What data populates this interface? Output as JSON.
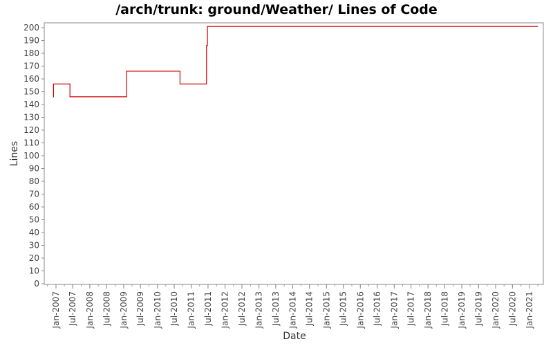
{
  "chart_data": {
    "type": "line",
    "title": "/arch/trunk: ground/Weather/ Lines of Code",
    "xlabel": "Date",
    "ylabel": "Lines",
    "ylim": [
      0,
      200
    ],
    "y_ticks": [
      0,
      10,
      20,
      30,
      40,
      50,
      60,
      70,
      80,
      90,
      100,
      110,
      120,
      130,
      140,
      150,
      160,
      170,
      180,
      190,
      200
    ],
    "x_ticks": [
      "Jan-2007",
      "Jul-2007",
      "Jan-2008",
      "Jul-2008",
      "Jan-2009",
      "Jul-2009",
      "Jan-2010",
      "Jul-2010",
      "Jan-2011",
      "Jul-2011",
      "Jan-2012",
      "Jul-2012",
      "Jan-2013",
      "Jul-2013",
      "Jan-2014",
      "Jul-2014",
      "Jan-2015",
      "Jul-2015",
      "Jan-2016",
      "Jul-2016",
      "Jan-2017",
      "Jul-2017",
      "Jan-2018",
      "Jul-2018",
      "Jan-2019",
      "Jul-2019",
      "Jan-2020",
      "Jul-2020",
      "Jan-2021"
    ],
    "grid": false,
    "line_color": "#cc0000",
    "series": [
      {
        "step": true,
        "x": [
          "2006-12-01",
          "2006-12-05",
          "2007-06-01",
          "2009-02-01",
          "2010-09-01",
          "2011-06-15",
          "2011-06-25",
          "2021-04-01"
        ],
        "values": [
          146,
          156,
          146,
          166,
          156,
          186,
          201,
          201
        ]
      }
    ]
  }
}
